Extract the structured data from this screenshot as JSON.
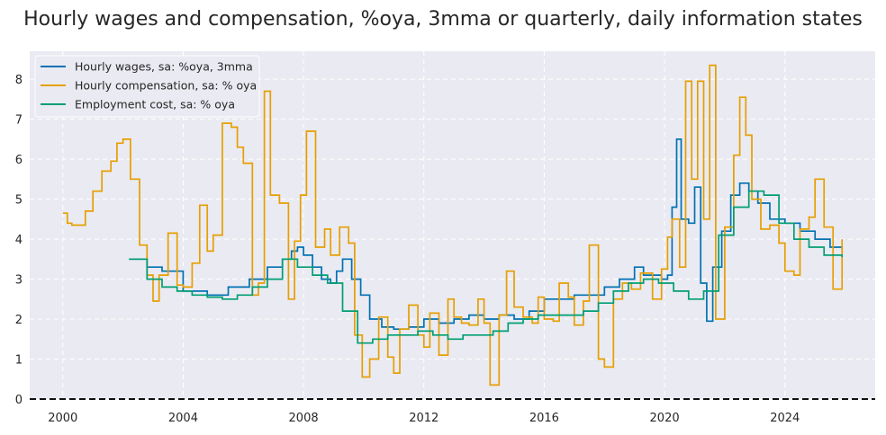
{
  "chart_data": {
    "type": "line",
    "title": "Hourly wages and compensation, %oya, 3mma or quarterly, daily information states",
    "xlabel": "",
    "ylabel": "",
    "xlim": [
      1998.9,
      2027.0
    ],
    "ylim": [
      0,
      8.7
    ],
    "xticks": [
      2000,
      2004,
      2008,
      2012,
      2016,
      2020,
      2024
    ],
    "yticks": [
      0,
      1,
      2,
      3,
      4,
      5,
      6,
      7,
      8
    ],
    "grid": true,
    "legend_position": "top-left",
    "reference_line": {
      "y": 0,
      "style": "dashed",
      "color": "#111111"
    },
    "series": [
      {
        "name": "Hourly wages, sa: %oya, 3mma",
        "color": "#0072B2",
        "step": true,
        "x": [
          2002.2,
          2002.8,
          2003.3,
          2004.0,
          2004.8,
          2005.5,
          2006.2,
          2006.8,
          2007.3,
          2007.6,
          2007.8,
          2008.0,
          2008.3,
          2008.6,
          2008.9,
          2009.1,
          2009.3,
          2009.6,
          2009.9,
          2010.2,
          2010.6,
          2011.0,
          2011.5,
          2012.0,
          2012.5,
          2013.0,
          2013.5,
          2014.0,
          2014.5,
          2015.0,
          2015.5,
          2016.0,
          2016.5,
          2017.0,
          2017.5,
          2018.0,
          2018.5,
          2019.0,
          2019.3,
          2019.6,
          2019.9,
          2020.1,
          2020.25,
          2020.4,
          2020.55,
          2020.8,
          2021.0,
          2021.2,
          2021.4,
          2021.6,
          2021.9,
          2022.2,
          2022.5,
          2022.8,
          2023.1,
          2023.5,
          2024.0,
          2024.5,
          2025.0,
          2025.5,
          2025.9
        ],
        "y": [
          3.5,
          3.3,
          3.2,
          2.7,
          2.6,
          2.8,
          3.0,
          3.3,
          3.5,
          3.7,
          3.8,
          3.6,
          3.3,
          3.0,
          2.9,
          3.2,
          3.5,
          3.0,
          2.6,
          2.0,
          1.8,
          1.75,
          1.8,
          2.0,
          1.9,
          2.0,
          2.1,
          2.0,
          2.1,
          2.0,
          2.2,
          2.5,
          2.5,
          2.6,
          2.6,
          2.8,
          3.0,
          3.3,
          3.1,
          3.1,
          3.0,
          3.1,
          4.8,
          6.5,
          4.5,
          4.4,
          5.3,
          2.9,
          1.95,
          3.3,
          4.2,
          5.1,
          5.4,
          5.2,
          4.9,
          4.5,
          4.4,
          4.2,
          4.0,
          3.8,
          3.75
        ]
      },
      {
        "name": "Hourly compensation, sa: % oya",
        "color": "#E69F00",
        "step": true,
        "x": [
          2000.0,
          2000.15,
          2000.3,
          2000.75,
          2001.0,
          2001.3,
          2001.6,
          2001.8,
          2002.0,
          2002.25,
          2002.55,
          2002.8,
          2003.0,
          2003.2,
          2003.5,
          2003.8,
          2004.0,
          2004.3,
          2004.55,
          2004.8,
          2005.0,
          2005.3,
          2005.6,
          2005.8,
          2006.0,
          2006.3,
          2006.5,
          2006.7,
          2006.9,
          2007.2,
          2007.5,
          2007.7,
          2007.9,
          2008.1,
          2008.4,
          2008.7,
          2008.9,
          2009.2,
          2009.5,
          2009.7,
          2009.95,
          2010.2,
          2010.5,
          2010.8,
          2011.0,
          2011.2,
          2011.5,
          2011.8,
          2012.0,
          2012.2,
          2012.5,
          2012.8,
          2013.0,
          2013.25,
          2013.5,
          2013.8,
          2014.0,
          2014.2,
          2014.5,
          2014.75,
          2015.0,
          2015.3,
          2015.6,
          2015.8,
          2016.0,
          2016.3,
          2016.5,
          2016.8,
          2017.0,
          2017.3,
          2017.5,
          2017.8,
          2018.0,
          2018.3,
          2018.6,
          2018.9,
          2019.2,
          2019.6,
          2019.9,
          2020.1,
          2020.25,
          2020.5,
          2020.7,
          2020.9,
          2021.1,
          2021.3,
          2021.5,
          2021.7,
          2022.0,
          2022.3,
          2022.5,
          2022.7,
          2022.9,
          2023.2,
          2023.5,
          2023.8,
          2024.0,
          2024.3,
          2024.5,
          2024.8,
          2025.0,
          2025.3,
          2025.6,
          2025.9
        ],
        "y": [
          4.65,
          4.4,
          4.35,
          4.7,
          5.2,
          5.7,
          5.95,
          6.4,
          6.5,
          5.5,
          3.85,
          3.1,
          2.45,
          3.1,
          4.15,
          2.85,
          2.8,
          3.4,
          4.85,
          3.7,
          4.1,
          6.9,
          6.8,
          6.3,
          5.9,
          2.6,
          2.9,
          7.7,
          5.1,
          4.9,
          2.5,
          3.95,
          5.1,
          6.7,
          3.8,
          4.25,
          3.6,
          4.3,
          3.9,
          1.6,
          0.55,
          1.0,
          2.05,
          1.05,
          0.65,
          1.75,
          2.35,
          1.6,
          1.3,
          2.15,
          1.1,
          2.5,
          2.05,
          1.9,
          1.85,
          2.5,
          1.9,
          0.35,
          2.1,
          3.2,
          2.3,
          2.05,
          1.9,
          2.55,
          2.0,
          1.95,
          2.9,
          2.55,
          1.85,
          2.45,
          3.85,
          1.0,
          0.8,
          2.5,
          2.9,
          2.75,
          3.15,
          2.5,
          3.25,
          4.05,
          4.5,
          3.3,
          7.95,
          5.5,
          7.95,
          4.5,
          8.35,
          2.0,
          4.3,
          6.1,
          7.55,
          6.6,
          5.0,
          4.25,
          4.35,
          3.9,
          3.2,
          3.1,
          4.25,
          4.55,
          5.5,
          4.3,
          2.75,
          4.0
        ]
      },
      {
        "name": "Employment cost, sa: % oya",
        "color": "#009E73",
        "step": true,
        "x": [
          2002.2,
          2002.8,
          2003.3,
          2003.8,
          2004.3,
          2004.8,
          2005.3,
          2005.8,
          2006.3,
          2006.8,
          2007.3,
          2007.8,
          2008.3,
          2008.8,
          2009.3,
          2009.8,
          2010.3,
          2010.8,
          2011.3,
          2011.8,
          2012.3,
          2012.8,
          2013.3,
          2013.8,
          2014.3,
          2014.8,
          2015.3,
          2015.8,
          2016.3,
          2016.8,
          2017.3,
          2017.8,
          2018.3,
          2018.8,
          2019.3,
          2019.8,
          2020.3,
          2020.8,
          2021.3,
          2021.8,
          2022.3,
          2022.8,
          2023.3,
          2023.8,
          2024.3,
          2024.8,
          2025.3,
          2025.9
        ],
        "y": [
          3.5,
          3.0,
          2.8,
          2.7,
          2.6,
          2.55,
          2.5,
          2.6,
          2.8,
          3.0,
          3.5,
          3.3,
          3.1,
          2.9,
          2.2,
          1.4,
          1.5,
          1.6,
          1.6,
          1.7,
          1.6,
          1.5,
          1.6,
          1.6,
          1.7,
          1.9,
          2.0,
          2.1,
          2.1,
          2.1,
          2.2,
          2.4,
          2.7,
          2.9,
          3.0,
          2.9,
          2.7,
          2.5,
          2.7,
          4.1,
          4.8,
          5.2,
          5.1,
          4.4,
          4.0,
          3.8,
          3.6,
          3.55
        ]
      }
    ]
  }
}
